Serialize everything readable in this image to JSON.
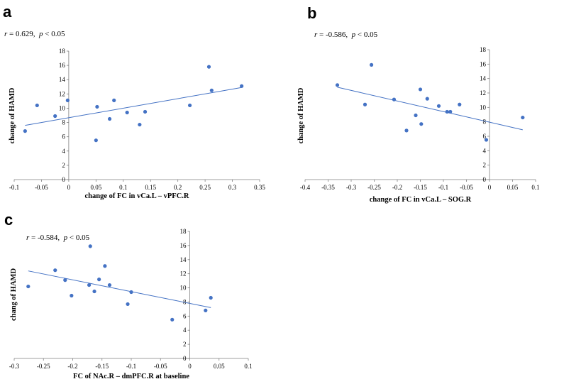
{
  "chart_data": [
    {
      "type": "scatter",
      "panel": "a",
      "stat_r": "0.629",
      "stat_p": "0.05",
      "xlabel": "change of FC in vCa.L – vPFC.R",
      "ylabel": "change of HAMD",
      "xlim": [
        -0.1,
        0.35
      ],
      "ylim": [
        0,
        18
      ],
      "xticks": [
        -0.1,
        -0.05,
        0,
        0.05,
        0.1,
        0.15,
        0.2,
        0.25,
        0.3,
        0.35
      ],
      "xtick_labels": [
        "-0.1",
        "-0.05",
        "0",
        "0.05",
        "0.1",
        "0.15",
        "0.2",
        "0.25",
        "0.3",
        "0.35"
      ],
      "yticks": [
        0,
        2,
        4,
        6,
        8,
        10,
        12,
        14,
        16,
        18
      ],
      "ytick_labels": [
        "0",
        "2",
        "4",
        "6",
        "8",
        "10",
        "12",
        "14",
        "16",
        "18"
      ],
      "points": [
        {
          "x": -0.08,
          "y": 6.8
        },
        {
          "x": -0.058,
          "y": 10.4
        },
        {
          "x": -0.025,
          "y": 8.9
        },
        {
          "x": -0.002,
          "y": 11.1
        },
        {
          "x": 0.05,
          "y": 5.5
        },
        {
          "x": 0.052,
          "y": 10.2
        },
        {
          "x": 0.075,
          "y": 8.5
        },
        {
          "x": 0.083,
          "y": 11.1
        },
        {
          "x": 0.107,
          "y": 9.4
        },
        {
          "x": 0.13,
          "y": 7.7
        },
        {
          "x": 0.14,
          "y": 9.5
        },
        {
          "x": 0.222,
          "y": 10.4
        },
        {
          "x": 0.257,
          "y": 15.8
        },
        {
          "x": 0.262,
          "y": 12.5
        },
        {
          "x": 0.317,
          "y": 13.1
        }
      ],
      "trendline": {
        "x": [
          -0.08,
          0.317
        ],
        "y": [
          7.6,
          12.9
        ]
      }
    },
    {
      "type": "scatter",
      "panel": "b",
      "stat_r": "-0.586",
      "stat_p": "0.05",
      "xlabel": "change of FC in vCa.L – SOG.R",
      "ylabel": "change of HAMD",
      "xlim": [
        -0.4,
        0.1
      ],
      "ylim": [
        0,
        18
      ],
      "xticks": [
        -0.4,
        -0.35,
        -0.3,
        -0.25,
        -0.2,
        -0.15,
        -0.1,
        -0.05,
        0,
        0.05,
        0.1
      ],
      "xtick_labels": [
        "-0.4",
        "-0.35",
        "-0.3",
        "-0.25",
        "-0.2",
        "-0.15",
        "-0.1",
        "-0.05",
        "0",
        "0.05",
        "0.1"
      ],
      "yticks": [
        0,
        2,
        4,
        6,
        8,
        10,
        12,
        14,
        16,
        18
      ],
      "ytick_labels": [
        "0",
        "2",
        "4",
        "6",
        "8",
        "10",
        "12",
        "14",
        "16",
        "18"
      ],
      "points": [
        {
          "x": -0.33,
          "y": 13.1
        },
        {
          "x": -0.27,
          "y": 10.4
        },
        {
          "x": -0.256,
          "y": 15.9
        },
        {
          "x": -0.207,
          "y": 11.1
        },
        {
          "x": -0.18,
          "y": 6.8
        },
        {
          "x": -0.16,
          "y": 8.9
        },
        {
          "x": -0.15,
          "y": 12.5
        },
        {
          "x": -0.148,
          "y": 7.7
        },
        {
          "x": -0.135,
          "y": 11.2
        },
        {
          "x": -0.11,
          "y": 10.2
        },
        {
          "x": -0.092,
          "y": 9.4
        },
        {
          "x": -0.085,
          "y": 9.4
        },
        {
          "x": -0.065,
          "y": 10.4
        },
        {
          "x": -0.007,
          "y": 5.5
        },
        {
          "x": 0.072,
          "y": 8.6
        }
      ],
      "trendline": {
        "x": [
          -0.33,
          0.072
        ],
        "y": [
          12.8,
          6.9
        ]
      }
    },
    {
      "type": "scatter",
      "panel": "c",
      "stat_r": "-0.584",
      "stat_p": "0.05",
      "xlabel": "FC of NAc.R – dmPFC.R at baseline",
      "ylabel": "chang of HAMD",
      "xlim": [
        -0.3,
        0.1
      ],
      "ylim": [
        0,
        18
      ],
      "xticks": [
        -0.3,
        -0.25,
        -0.2,
        -0.15,
        -0.1,
        -0.05,
        0,
        0.05,
        0.1
      ],
      "xtick_labels": [
        "-0.3",
        "-0.25",
        "-0.2",
        "-0.15",
        "-0.1",
        "-0.05",
        "0",
        "0.05",
        "0.1"
      ],
      "yticks": [
        0,
        2,
        4,
        6,
        8,
        10,
        12,
        14,
        16,
        18
      ],
      "ytick_labels": [
        "0",
        "2",
        "4",
        "6",
        "8",
        "10",
        "12",
        "14",
        "16",
        "18"
      ],
      "points": [
        {
          "x": -0.276,
          "y": 10.2
        },
        {
          "x": -0.23,
          "y": 12.5
        },
        {
          "x": -0.213,
          "y": 11.1
        },
        {
          "x": -0.202,
          "y": 8.9
        },
        {
          "x": -0.172,
          "y": 10.4
        },
        {
          "x": -0.17,
          "y": 15.9
        },
        {
          "x": -0.163,
          "y": 9.5
        },
        {
          "x": -0.155,
          "y": 11.2
        },
        {
          "x": -0.145,
          "y": 13.1
        },
        {
          "x": -0.137,
          "y": 10.4
        },
        {
          "x": -0.106,
          "y": 7.7
        },
        {
          "x": -0.1,
          "y": 9.4
        },
        {
          "x": -0.03,
          "y": 5.5
        },
        {
          "x": 0.027,
          "y": 6.8
        },
        {
          "x": 0.036,
          "y": 8.6
        }
      ],
      "trendline": {
        "x": [
          -0.276,
          0.036
        ],
        "y": [
          12.4,
          7.2
        ]
      }
    }
  ],
  "colors": {
    "marker": "#4472C4",
    "trendline": "#4472C4",
    "axis": "#7f7f7f"
  }
}
